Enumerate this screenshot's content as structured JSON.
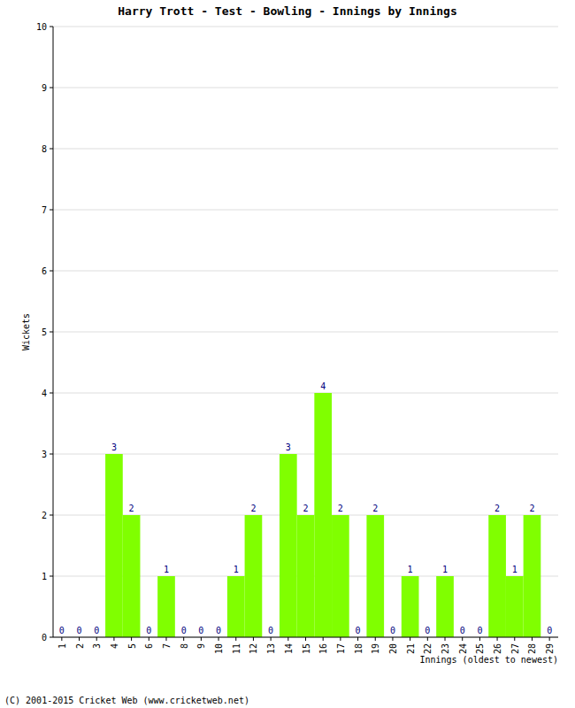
{
  "chart_data": {
    "type": "bar",
    "title": "Harry Trott - Test - Bowling - Innings by Innings",
    "x_label": "Innings (oldest to newest)",
    "y_label": "Wickets",
    "annotation": "(C) 2001-2015 Cricket Web (www.cricketweb.net)",
    "categories": [
      "1",
      "2",
      "3",
      "4",
      "5",
      "6",
      "7",
      "8",
      "9",
      "10",
      "11",
      "12",
      "13",
      "14",
      "15",
      "16",
      "17",
      "18",
      "19",
      "20",
      "21",
      "22",
      "23",
      "24",
      "25",
      "26",
      "27",
      "28",
      "29"
    ],
    "values": [
      0,
      0,
      0,
      3,
      2,
      0,
      1,
      0,
      0,
      0,
      1,
      2,
      0,
      3,
      2,
      4,
      2,
      0,
      2,
      0,
      1,
      0,
      1,
      0,
      0,
      2,
      1,
      2,
      0
    ],
    "color": "#80ff00",
    "ylim": [
      0,
      10
    ],
    "yticks": [
      0,
      1,
      2,
      3,
      4,
      5,
      6,
      7,
      8,
      9,
      10
    ],
    "grid": true,
    "data_labels": true
  }
}
